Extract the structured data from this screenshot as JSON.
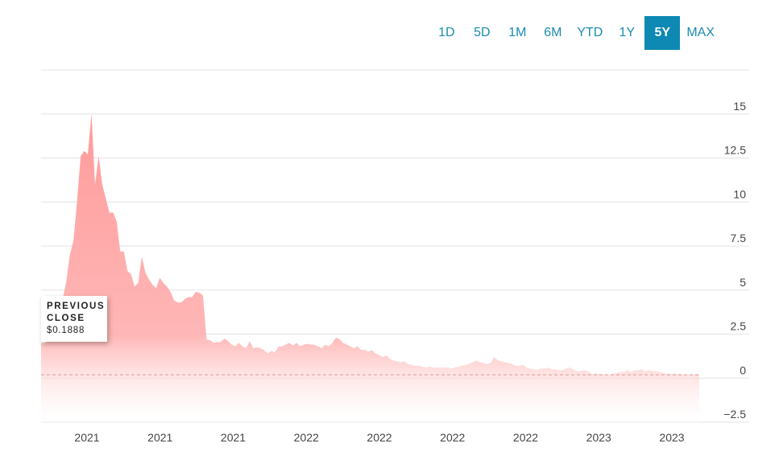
{
  "range_selector": {
    "options": [
      "1D",
      "5D",
      "1M",
      "6M",
      "YTD",
      "1Y",
      "5Y",
      "MAX"
    ],
    "active": "5Y"
  },
  "previous_close": {
    "label": "PREVIOUS CLOSE",
    "value_text": "$0.1888",
    "value": 0.1888
  },
  "colors": {
    "accent": "#0d89b3",
    "area": "#ffb3b3",
    "area_peak": "#ff9a9a",
    "grid": "#e3e3e3",
    "baseline": "#d89a9a"
  },
  "chart_data": {
    "type": "area",
    "title": "",
    "xlabel": "",
    "ylabel": "",
    "ylim": [
      -2.5,
      17.5
    ],
    "y_ticks": [
      15,
      12.5,
      10,
      7.5,
      5,
      2.5,
      0,
      -2.5
    ],
    "y_tick_labels": [
      "15",
      "12.5",
      "10",
      "7.5",
      "5",
      "2.5",
      "0",
      "−2.5"
    ],
    "x_tick_labels": [
      "2021",
      "2021",
      "2021",
      "2022",
      "2022",
      "2022",
      "2022",
      "2023",
      "2023"
    ],
    "grid": true,
    "reference_line": 0.1888,
    "series": [
      {
        "values": [
          2.0,
          2.0,
          2.1,
          2.2,
          2.5,
          3.5,
          4.5,
          5.5,
          7.0,
          7.8,
          10.0,
          12.6,
          12.9,
          12.7,
          15.0,
          11.0,
          12.6,
          11.0,
          10.2,
          9.4,
          9.4,
          8.9,
          7.2,
          7.2,
          6.1,
          5.9,
          5.2,
          5.4,
          6.9,
          6.0,
          5.6,
          5.3,
          5.1,
          5.7,
          5.4,
          5.2,
          4.9,
          4.4,
          4.3,
          4.3,
          4.5,
          4.6,
          4.6,
          4.9,
          4.85,
          4.7,
          2.2,
          2.15,
          2.0,
          2.05,
          2.05,
          2.25,
          2.1,
          1.9,
          1.8,
          2.0,
          1.8,
          1.7,
          2.1,
          1.7,
          1.75,
          1.7,
          1.6,
          1.4,
          1.55,
          1.45,
          1.8,
          1.8,
          1.9,
          2.0,
          1.85,
          2.0,
          1.8,
          1.9,
          1.95,
          1.9,
          1.9,
          1.8,
          1.7,
          1.9,
          1.8,
          2.0,
          2.3,
          2.2,
          2.0,
          1.9,
          1.8,
          1.7,
          1.8,
          1.6,
          1.6,
          1.5,
          1.6,
          1.4,
          1.3,
          1.2,
          1.3,
          1.1,
          1.0,
          0.95,
          0.9,
          0.95,
          0.8,
          0.75,
          0.7,
          0.7,
          0.65,
          0.6,
          0.65,
          0.6,
          0.6,
          0.6,
          0.6,
          0.62,
          0.55,
          0.6,
          0.65,
          0.7,
          0.75,
          0.8,
          0.9,
          1.0,
          0.9,
          0.85,
          0.8,
          0.85,
          1.2,
          1.0,
          0.95,
          0.9,
          0.85,
          0.8,
          0.7,
          0.7,
          0.75,
          0.6,
          0.55,
          0.5,
          0.45,
          0.55,
          0.55,
          0.6,
          0.5,
          0.5,
          0.45,
          0.45,
          0.55,
          0.6,
          0.5,
          0.4,
          0.4,
          0.45,
          0.4,
          0.25,
          0.25,
          0.25,
          0.22,
          0.22,
          0.2,
          0.25,
          0.3,
          0.35,
          0.35,
          0.45,
          0.35,
          0.45,
          0.45,
          0.5,
          0.4,
          0.45,
          0.4,
          0.4,
          0.35,
          0.3,
          0.25,
          0.25,
          0.25,
          0.25,
          0.22,
          0.2,
          0.2,
          0.2,
          0.2,
          0.1888
        ]
      }
    ]
  }
}
